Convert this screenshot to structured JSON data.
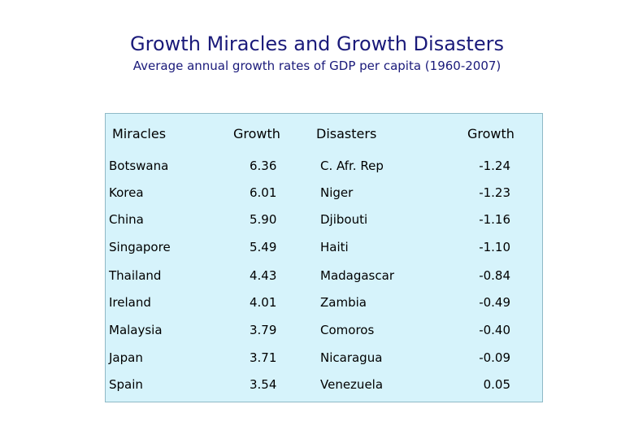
{
  "title": "Growth Miracles and Growth Disasters",
  "subtitle": "Average annual growth rates of GDP per capita (1960-2007)",
  "headers": {
    "miracles": "Miracles",
    "growth1": "Growth",
    "disasters": "Disasters",
    "growth2": "Growth"
  },
  "rows": [
    {
      "miracle": "Botswana",
      "mg": "6.36",
      "disaster": "C. Afr. Rep",
      "dg": "-1.24"
    },
    {
      "miracle": "Korea",
      "mg": "6.01",
      "disaster": "Niger",
      "dg": "-1.23"
    },
    {
      "miracle": "China",
      "mg": "5.90",
      "disaster": "Djibouti",
      "dg": "-1.16"
    },
    {
      "miracle": "Singapore",
      "mg": "5.49",
      "disaster": "Haiti",
      "dg": "-1.10"
    },
    {
      "miracle": "Thailand",
      "mg": "4.43",
      "disaster": "Madagascar",
      "dg": "-0.84"
    },
    {
      "miracle": "Ireland",
      "mg": "4.01",
      "disaster": "Zambia",
      "dg": "-0.49"
    },
    {
      "miracle": "Malaysia",
      "mg": "3.79",
      "disaster": "Comoros",
      "dg": "-0.40"
    },
    {
      "miracle": "Japan",
      "mg": "3.71",
      "disaster": "Nicaragua",
      "dg": "-0.09"
    },
    {
      "miracle": "Spain",
      "mg": "3.54",
      "disaster": "Venezuela",
      "dg": "0.05"
    }
  ]
}
